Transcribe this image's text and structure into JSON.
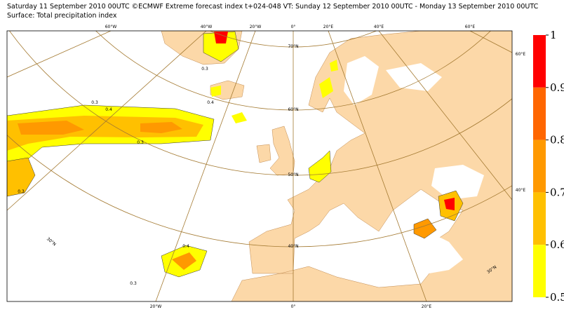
{
  "header": {
    "line1": "Saturday 11 September 2010 00UTC ©ECMWF Extreme forecast index t+024-048 VT: Sunday 12 September 2010 00UTC - Monday 13 September 2010 00UTC",
    "line2": "Surface: Total precipitation index"
  },
  "map": {
    "lon_labels": [
      "60°W",
      "40°W",
      "20°W",
      "0°",
      "20°E",
      "40°E",
      "60°E",
      "20°W",
      "0°",
      "20°E"
    ],
    "lat_labels": [
      "70°N",
      "60°N",
      "50°N",
      "40°N",
      "30°N",
      "60°E",
      "40°E",
      "30°N"
    ],
    "contour_labels": [
      0.3,
      0.4,
      0.3,
      0.4,
      0.3,
      0.3,
      0.4,
      0.3
    ]
  },
  "legend": {
    "ticks": [
      1,
      0.9,
      0.8,
      0.7,
      0.6,
      0.5
    ],
    "colors": [
      "#ff0000",
      "#ff6600",
      "#ff9900",
      "#ffc000",
      "#ffff00"
    ]
  }
}
